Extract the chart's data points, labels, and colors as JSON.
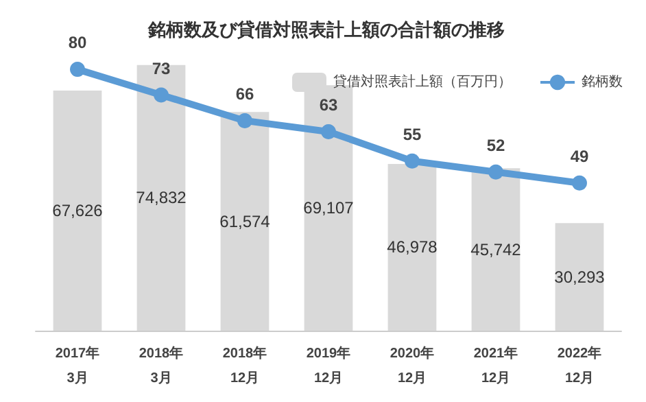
{
  "chart_data": {
    "type": "bar",
    "title": "銘柄数及び貸借対照表計上額の合計額の推移",
    "categories": [
      "2017年\n3月",
      "2018年\n3月",
      "2018年\n12月",
      "2019年\n12月",
      "2020年\n12月",
      "2021年\n12月",
      "2022年\n12月"
    ],
    "series": [
      {
        "name": "貸借対照表計上額（百万円）",
        "color": "#d9d9d9",
        "values": [
          67626,
          74832,
          61574,
          69107,
          46978,
          45742,
          30293
        ],
        "value_labels": [
          "67,626",
          "74,832",
          "61,574",
          "69,107",
          "46,978",
          "45,742",
          "30,293"
        ]
      },
      {
        "name": "銘柄数",
        "type": "line",
        "axis": "y2",
        "color": "#5b9bd5",
        "values": [
          80,
          73,
          66,
          63,
          55,
          52,
          49
        ]
      }
    ],
    "data_labels": true,
    "legend": "top right",
    "marker": "circle",
    "grid": false,
    "tick_labels": "x"
  }
}
